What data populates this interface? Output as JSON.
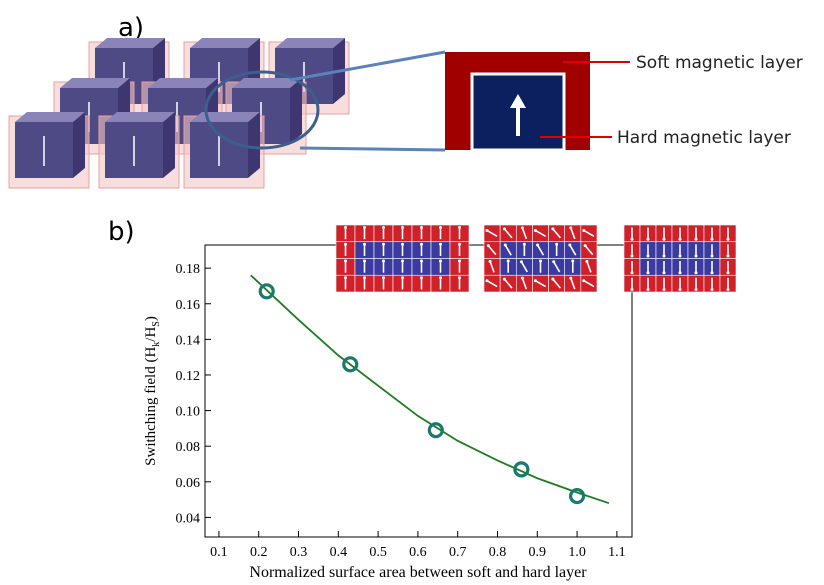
{
  "panels": {
    "a_label": "a)",
    "b_label": "b)",
    "soft_label": "Soft magnetic layer",
    "hard_label": "Hard magnetic layer"
  },
  "chart_data": {
    "type": "scatter",
    "xlabel": "Normalized surface area between soft and hard layer",
    "ylabel": [
      "Swithching field (H",
      "k",
      "/H",
      "S",
      ")"
    ],
    "xlim": [
      0.065,
      1.138
    ],
    "ylim": [
      0.029,
      0.193
    ],
    "xticks": [
      0.1,
      0.2,
      0.3,
      0.4,
      0.5,
      0.6,
      0.7,
      0.8,
      0.9,
      {
        "value": 1.0,
        "label": "1.0"
      },
      1.1
    ],
    "yticks": [
      0.04,
      0.06,
      0.08,
      {
        "value": 0.1,
        "label": "0.10"
      },
      0.12,
      0.14,
      0.16,
      0.18
    ],
    "series": [
      {
        "kind": "line",
        "color": "#1e7d1e",
        "x": [
          0.18,
          0.3,
          0.4,
          0.5,
          0.6,
          0.7,
          0.8,
          0.9,
          1.0,
          1.08
        ],
        "values": [
          0.176,
          0.151,
          0.131,
          0.114,
          0.097,
          0.083,
          0.072,
          0.062,
          0.054,
          0.048
        ]
      },
      {
        "kind": "marker",
        "color": "#1a7a6e",
        "x": [
          0.22,
          0.43,
          0.645,
          0.86,
          1.0
        ],
        "values": [
          0.167,
          0.126,
          0.089,
          0.067,
          0.052
        ]
      }
    ]
  }
}
